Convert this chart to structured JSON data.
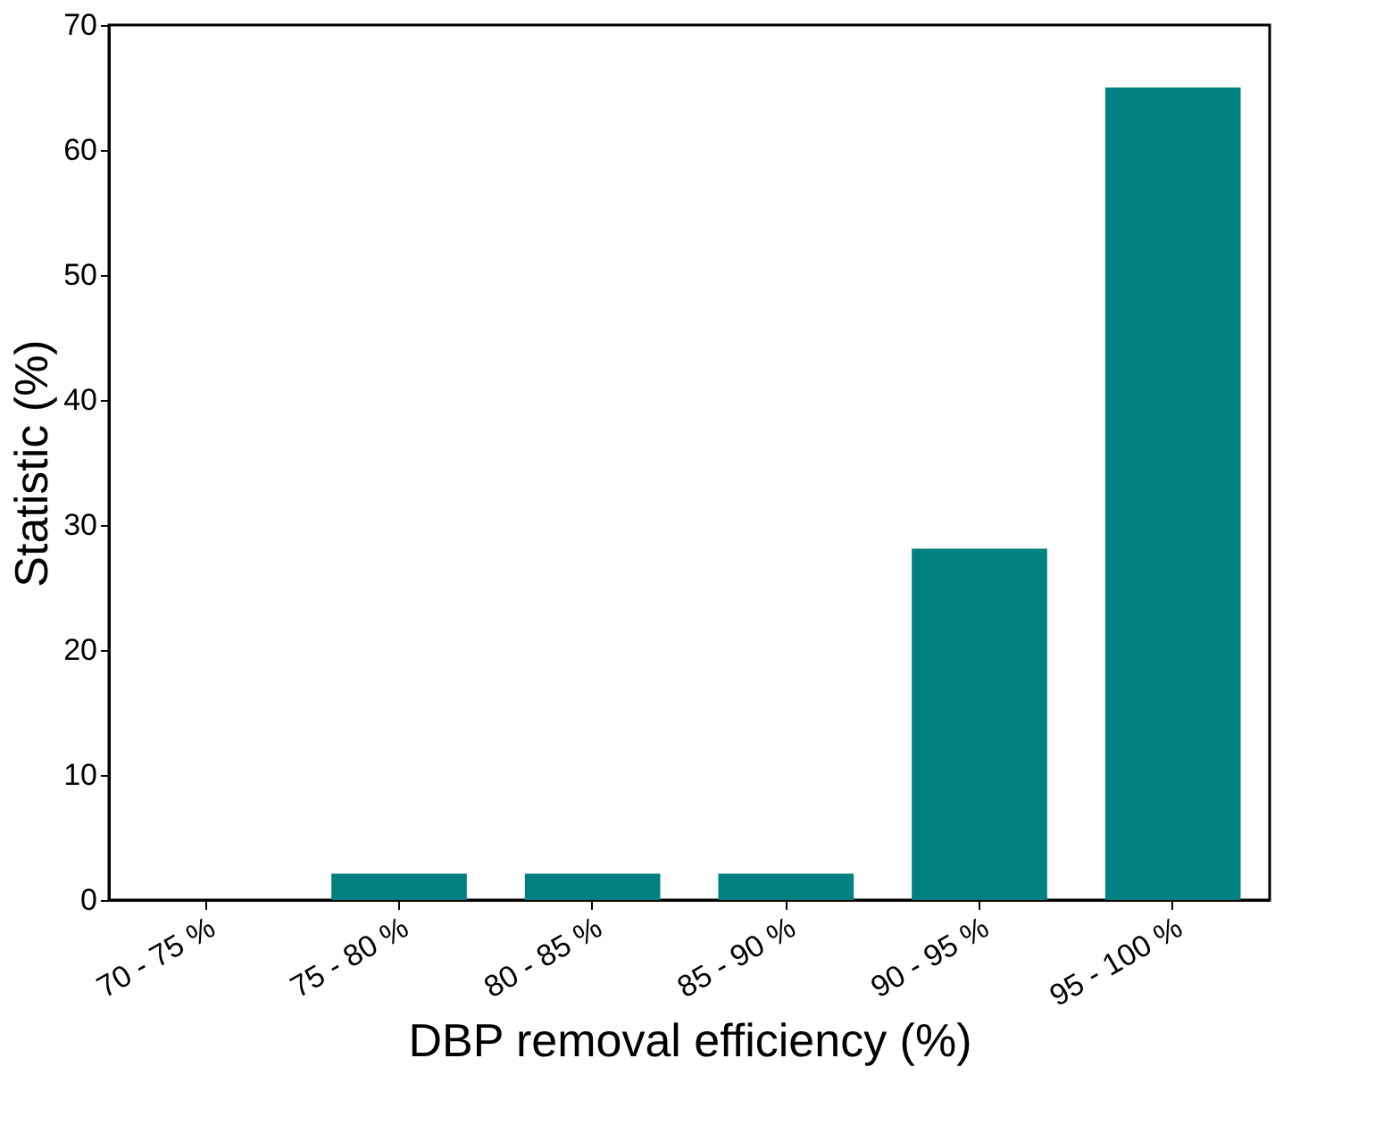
{
  "chart_data": {
    "type": "bar",
    "xlabel": "DBP removal efficiency (%)",
    "ylabel": "Statistic (%)",
    "categories": [
      "70 - 75 %",
      "75 - 80 %",
      "80 - 85 %",
      "85 - 90 %",
      "90 - 95 %",
      "95 - 100 %"
    ],
    "values": [
      0,
      2.1,
      2.1,
      2.1,
      28.1,
      65
    ],
    "color": "#008080",
    "ylim": [
      0,
      70
    ],
    "yticks": [
      0,
      10,
      20,
      30,
      40,
      50,
      60,
      70
    ],
    "grid": false
  }
}
